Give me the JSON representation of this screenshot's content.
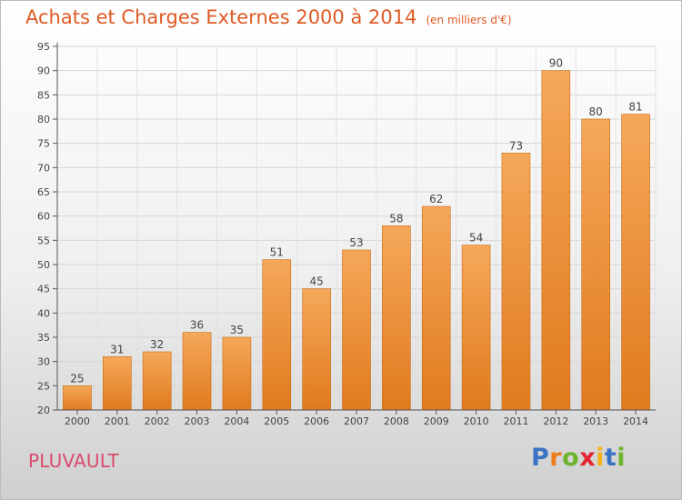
{
  "chart_data": {
    "type": "bar",
    "title": "Achats et Charges Externes 2000 à 2014",
    "subtitle": "(en milliers d'€)",
    "categories": [
      "2000",
      "2001",
      "2002",
      "2003",
      "2004",
      "2005",
      "2006",
      "2007",
      "2008",
      "2009",
      "2010",
      "2011",
      "2012",
      "2013",
      "2014"
    ],
    "values": [
      25,
      31,
      32,
      36,
      35,
      51,
      45,
      53,
      58,
      62,
      54,
      73,
      90,
      80,
      81
    ],
    "ylim": [
      20,
      95
    ],
    "yticks": [
      20,
      25,
      30,
      35,
      40,
      45,
      50,
      55,
      60,
      65,
      70,
      75,
      80,
      85,
      90,
      95
    ],
    "grid": true,
    "legend": "none",
    "colors": {
      "bar_top": "#f5a85a",
      "bar_bottom": "#e07a1e",
      "label": "#444444",
      "axis": "#555555"
    }
  },
  "place_name": "PLUVAULT",
  "logo": {
    "letters": [
      "P",
      "r",
      "o",
      "x",
      "i",
      "t",
      "i"
    ],
    "colors": [
      "#3a73c4",
      "#f07c1c",
      "#6cb42c",
      "#e3262e",
      "#f2b21a",
      "#3a73c4",
      "#6cb42c"
    ]
  }
}
